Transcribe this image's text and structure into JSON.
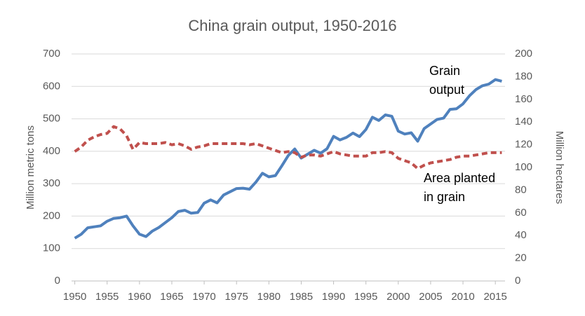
{
  "chart_data": {
    "type": "line",
    "title": "China grain output, 1950-2016",
    "y_label": "Million metric tons",
    "y2_label": "Million hectares",
    "x": [
      1950,
      1951,
      1952,
      1953,
      1954,
      1955,
      1956,
      1957,
      1958,
      1959,
      1960,
      1961,
      1962,
      1963,
      1964,
      1965,
      1966,
      1967,
      1968,
      1969,
      1970,
      1971,
      1972,
      1973,
      1974,
      1975,
      1976,
      1977,
      1978,
      1979,
      1980,
      1981,
      1982,
      1983,
      1984,
      1985,
      1986,
      1987,
      1988,
      1989,
      1990,
      1991,
      1992,
      1993,
      1994,
      1995,
      1996,
      1997,
      1998,
      1999,
      2000,
      2001,
      2002,
      2003,
      2004,
      2005,
      2006,
      2007,
      2008,
      2009,
      2010,
      2011,
      2012,
      2013,
      2014,
      2015,
      2016
    ],
    "series": [
      {
        "name": "Grain output",
        "color": "#4f81bd",
        "axis": "y",
        "dashed": false,
        "values": [
          132,
          144,
          164,
          167,
          170,
          184,
          193,
          195,
          200,
          170,
          144,
          137,
          154,
          165,
          180,
          195,
          214,
          218,
          209,
          211,
          240,
          250,
          241,
          265,
          275,
          285,
          286,
          283,
          305,
          332,
          321,
          325,
          355,
          387,
          407,
          379,
          391,
          403,
          394,
          408,
          446,
          435,
          443,
          456,
          445,
          467,
          505,
          495,
          512,
          508,
          462,
          453,
          457,
          431,
          470,
          484,
          498,
          502,
          529,
          531,
          546,
          571,
          590,
          602,
          607,
          621,
          616
        ]
      },
      {
        "name": "Area planted in grain",
        "color": "#c0504d",
        "axis": "y2",
        "dashed": true,
        "values": [
          114,
          118,
          124,
          127,
          129,
          130,
          136,
          134,
          128,
          116,
          122,
          121,
          121,
          121,
          122,
          120,
          121,
          119,
          116,
          118,
          119,
          121,
          121,
          121,
          121,
          121,
          121,
          120,
          121,
          119,
          117,
          115,
          113,
          114,
          113,
          109,
          111,
          111,
          110,
          112,
          114,
          112,
          111,
          110,
          110,
          110,
          113,
          113,
          114,
          113,
          108,
          106,
          104,
          99,
          102,
          104,
          105,
          106,
          107,
          109,
          110,
          110,
          111,
          112,
          113,
          113,
          113
        ]
      }
    ],
    "annotations": [
      [
        "Grain",
        "output"
      ],
      [
        "Area planted",
        "in grain"
      ]
    ],
    "xlim": [
      1949.5,
      2016.5
    ],
    "xticks": [
      1950,
      1955,
      1960,
      1965,
      1970,
      1975,
      1980,
      1985,
      1990,
      1995,
      2000,
      2005,
      2010,
      2015
    ],
    "ylim": [
      0,
      700
    ],
    "yticks": [
      0,
      100,
      200,
      300,
      400,
      500,
      600,
      700
    ],
    "y2lim": [
      0,
      200
    ],
    "y2ticks": [
      0,
      20,
      40,
      60,
      80,
      100,
      120,
      140,
      160,
      180,
      200
    ],
    "grid": true
  }
}
